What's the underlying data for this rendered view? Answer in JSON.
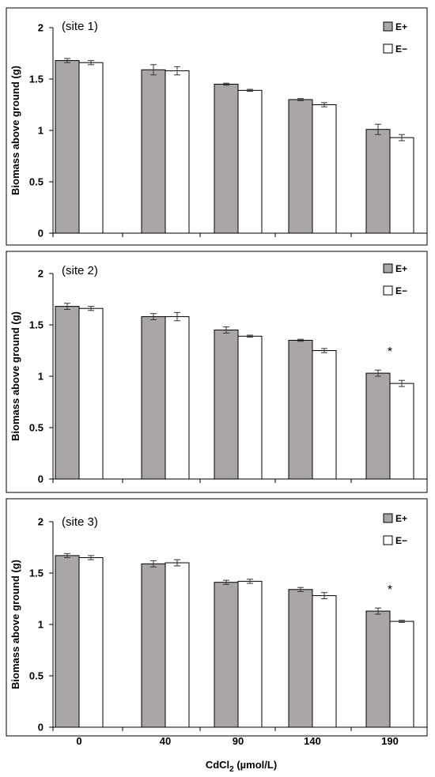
{
  "colors": {
    "e_plus": "#aaa6a6",
    "e_minus": "#ffffff",
    "stroke": "#000000",
    "error_bar": "#333333"
  },
  "chart_data": [
    {
      "type": "bar",
      "panel_label": "(site 1)",
      "ylabel": "Biomass above ground (g)",
      "ylim": [
        0,
        2
      ],
      "yticks": [
        "0",
        "0.5",
        "1",
        "1.5",
        "2"
      ],
      "categories": [
        "0",
        "40",
        "90",
        "140",
        "190"
      ],
      "legend": "top-right",
      "series": [
        {
          "name": "E+",
          "values": [
            1.68,
            1.59,
            1.45,
            1.3,
            1.01
          ],
          "errors": [
            0.02,
            0.05,
            0.01,
            0.01,
            0.05
          ]
        },
        {
          "name": "E−",
          "values": [
            1.66,
            1.58,
            1.39,
            1.25,
            0.93
          ],
          "errors": [
            0.02,
            0.04,
            0.01,
            0.02,
            0.03
          ]
        }
      ],
      "annotations": []
    },
    {
      "type": "bar",
      "panel_label": "(site 2)",
      "ylabel": "Biomass above ground (g)",
      "ylim": [
        0,
        2
      ],
      "yticks": [
        "0",
        "0.5",
        "1",
        "1.5",
        "2"
      ],
      "categories": [
        "0",
        "40",
        "90",
        "140",
        "190"
      ],
      "legend": "top-right",
      "series": [
        {
          "name": "E+",
          "values": [
            1.68,
            1.58,
            1.45,
            1.35,
            1.03
          ],
          "errors": [
            0.03,
            0.03,
            0.03,
            0.01,
            0.03
          ]
        },
        {
          "name": "E−",
          "values": [
            1.66,
            1.58,
            1.39,
            1.25,
            0.93
          ],
          "errors": [
            0.02,
            0.04,
            0.01,
            0.02,
            0.03
          ]
        }
      ],
      "annotations": [
        {
          "category": "190",
          "text": "*"
        }
      ]
    },
    {
      "type": "bar",
      "panel_label": "(site 3)",
      "ylabel": "Biomass above ground (g)",
      "ylim": [
        0,
        2
      ],
      "yticks": [
        "0",
        "0.5",
        "1",
        "1.5",
        "2"
      ],
      "categories": [
        "0",
        "40",
        "90",
        "140",
        "190"
      ],
      "legend": "top-right",
      "series": [
        {
          "name": "E+",
          "values": [
            1.67,
            1.59,
            1.41,
            1.34,
            1.13
          ],
          "errors": [
            0.02,
            0.03,
            0.02,
            0.02,
            0.03
          ]
        },
        {
          "name": "E−",
          "values": [
            1.65,
            1.6,
            1.42,
            1.28,
            1.03
          ],
          "errors": [
            0.02,
            0.03,
            0.02,
            0.03,
            0.01
          ]
        }
      ],
      "annotations": [
        {
          "category": "190",
          "text": "*"
        }
      ]
    }
  ],
  "xlabel_main": "CdCl",
  "xlabel_subscript": "2",
  "xlabel_unit": " (µmol/L)"
}
